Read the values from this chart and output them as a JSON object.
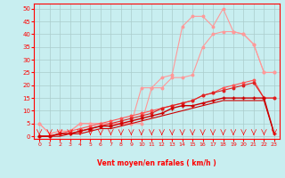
{
  "xlabel": "Vent moyen/en rafales ( km/h )",
  "bg": "#c8eef0",
  "grid_color": "#aacccc",
  "x": [
    0,
    1,
    2,
    3,
    4,
    5,
    6,
    7,
    8,
    9,
    10,
    11,
    12,
    13,
    14,
    15,
    16,
    17,
    18,
    19,
    20,
    21,
    22,
    23
  ],
  "ylim": [
    -1,
    52
  ],
  "xlim": [
    -0.5,
    23.5
  ],
  "yticks": [
    0,
    5,
    10,
    15,
    20,
    25,
    30,
    35,
    40,
    45,
    50
  ],
  "col_pink": "#ff9999",
  "col_midred": "#ff5555",
  "col_darkred": "#cc0000",
  "col_red": "#dd2222",
  "curve_A": [
    5,
    1,
    2,
    2,
    5,
    5,
    5,
    5,
    5,
    5,
    19,
    19,
    23,
    24,
    43,
    47,
    47,
    43,
    50,
    41,
    40,
    36,
    25,
    25
  ],
  "curve_B": [
    5,
    1,
    2,
    2,
    5,
    5,
    5,
    5,
    5,
    5,
    5,
    19,
    19,
    23,
    23,
    24,
    35,
    40,
    41,
    41,
    40,
    36,
    25,
    25
  ],
  "curve_C": [
    0,
    0,
    1,
    2,
    3,
    4,
    5,
    6,
    7,
    8,
    9,
    10,
    11,
    12,
    13,
    14,
    16,
    17,
    19,
    20,
    21,
    22,
    15,
    15
  ],
  "curve_D": [
    0,
    0,
    1,
    1,
    2,
    3,
    4,
    5,
    6,
    7,
    8,
    9,
    11,
    12,
    13,
    14,
    16,
    17,
    18,
    19,
    20,
    21,
    15,
    15
  ],
  "curve_E": [
    0,
    0,
    1,
    1,
    2,
    3,
    4,
    4,
    5,
    6,
    7,
    8,
    9,
    11,
    12,
    12,
    13,
    14,
    15,
    15,
    15,
    15,
    15,
    1
  ],
  "curve_F": [
    0,
    0,
    0,
    1,
    1,
    2,
    3,
    3,
    4,
    5,
    6,
    7,
    8,
    9,
    10,
    11,
    12,
    13,
    14,
    14,
    14,
    14,
    14,
    1
  ]
}
